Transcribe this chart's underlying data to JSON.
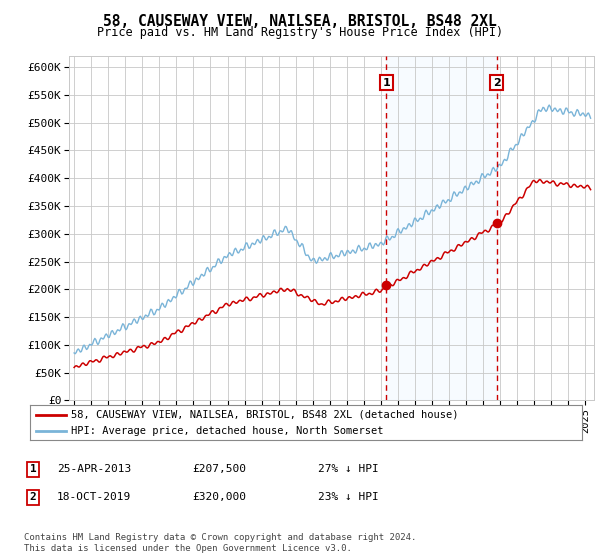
{
  "title": "58, CAUSEWAY VIEW, NAILSEA, BRISTOL, BS48 2XL",
  "subtitle": "Price paid vs. HM Land Registry's House Price Index (HPI)",
  "ylim": [
    0,
    620000
  ],
  "yticks": [
    0,
    50000,
    100000,
    150000,
    200000,
    250000,
    300000,
    350000,
    400000,
    450000,
    500000,
    550000,
    600000
  ],
  "xlim_start": 1994.7,
  "xlim_end": 2025.5,
  "hpi_color": "#7ab4d8",
  "price_color": "#cc0000",
  "sale1_date": 2013.32,
  "sale1_price": 207500,
  "sale2_date": 2019.8,
  "sale2_price": 320000,
  "sale1_label": "25-APR-2013",
  "sale1_amount": "£207,500",
  "sale1_hpi": "27% ↓ HPI",
  "sale2_label": "18-OCT-2019",
  "sale2_amount": "£320,000",
  "sale2_hpi": "23% ↓ HPI",
  "legend1": "58, CAUSEWAY VIEW, NAILSEA, BRISTOL, BS48 2XL (detached house)",
  "legend2": "HPI: Average price, detached house, North Somerset",
  "footer": "Contains HM Land Registry data © Crown copyright and database right 2024.\nThis data is licensed under the Open Government Licence v3.0.",
  "background_color": "#ffffff",
  "plot_bg_color": "#ffffff",
  "shade_color": "#ddeeff",
  "grid_color": "#c8c8c8"
}
